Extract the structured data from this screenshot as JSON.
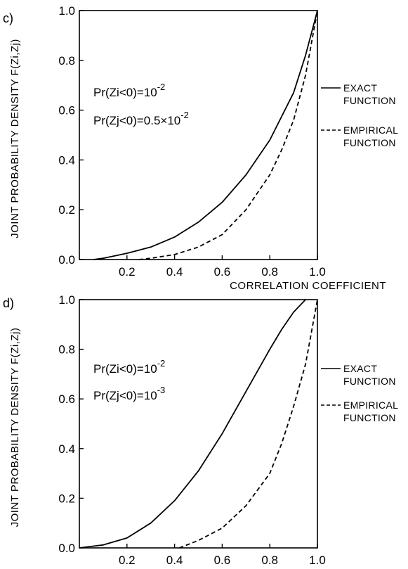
{
  "chart_data": [
    {
      "panel": "c)",
      "type": "line",
      "ylabel": "JOINT PROBABILITY DENSITY F(Zi,Zj)",
      "xlabel": "CORRELATION COEFFICIENT",
      "xlim": [
        0.0,
        1.0
      ],
      "ylim": [
        0.0,
        1.0
      ],
      "x_ticks": [
        "0.2",
        "0.4",
        "0.6",
        "0.8",
        "1.0"
      ],
      "y_ticks": [
        "0.0",
        "0.2",
        "0.4",
        "0.6",
        "0.8",
        "1.0"
      ],
      "annotations": [
        "Pr(Zi<0)=10^-2",
        "Pr(Zj<0)=0.5×10^-2"
      ],
      "series": [
        {
          "name": "EXACT FUNCTION",
          "style": "solid",
          "x": [
            0.06,
            0.1,
            0.2,
            0.3,
            0.4,
            0.5,
            0.6,
            0.7,
            0.8,
            0.9,
            0.95,
            1.0
          ],
          "y": [
            0.0,
            0.005,
            0.025,
            0.05,
            0.09,
            0.15,
            0.23,
            0.34,
            0.48,
            0.67,
            0.82,
            1.0
          ]
        },
        {
          "name": "EMPIRICAL FUNCTION",
          "style": "dashed",
          "x": [
            0.25,
            0.3,
            0.4,
            0.5,
            0.6,
            0.7,
            0.8,
            0.85,
            0.9,
            0.95,
            1.0
          ],
          "y": [
            0.0,
            0.005,
            0.02,
            0.05,
            0.1,
            0.2,
            0.34,
            0.44,
            0.56,
            0.74,
            1.0
          ]
        }
      ]
    },
    {
      "panel": "d)",
      "type": "line",
      "ylabel": "JOINT PROBABILITY DENSITY F(Zi,Zj)",
      "xlabel": "CORRELATION COEFFICIENT",
      "xlim": [
        0.0,
        1.0
      ],
      "ylim": [
        0.0,
        1.0
      ],
      "x_ticks": [
        "0.2",
        "0.4",
        "0.6",
        "0.8",
        "1.0"
      ],
      "y_ticks": [
        "0.0",
        "0.2",
        "0.4",
        "0.6",
        "0.8",
        "1.0"
      ],
      "annotations": [
        "Pr(Zi<0)=10^-2",
        "Pr(Zj<0)=10^-3"
      ],
      "series": [
        {
          "name": "EXACT FUNCTION",
          "style": "solid",
          "x": [
            0.0,
            0.1,
            0.2,
            0.3,
            0.4,
            0.5,
            0.6,
            0.7,
            0.8,
            0.85,
            0.9,
            0.95
          ],
          "y": [
            0.0,
            0.012,
            0.04,
            0.1,
            0.19,
            0.31,
            0.46,
            0.63,
            0.8,
            0.88,
            0.95,
            1.0
          ]
        },
        {
          "name": "EMPIRICAL FUNCTION",
          "style": "dashed",
          "x": [
            0.42,
            0.5,
            0.6,
            0.7,
            0.8,
            0.85,
            0.9,
            0.95,
            1.0
          ],
          "y": [
            0.0,
            0.03,
            0.08,
            0.17,
            0.3,
            0.42,
            0.57,
            0.74,
            1.0
          ]
        }
      ]
    }
  ]
}
